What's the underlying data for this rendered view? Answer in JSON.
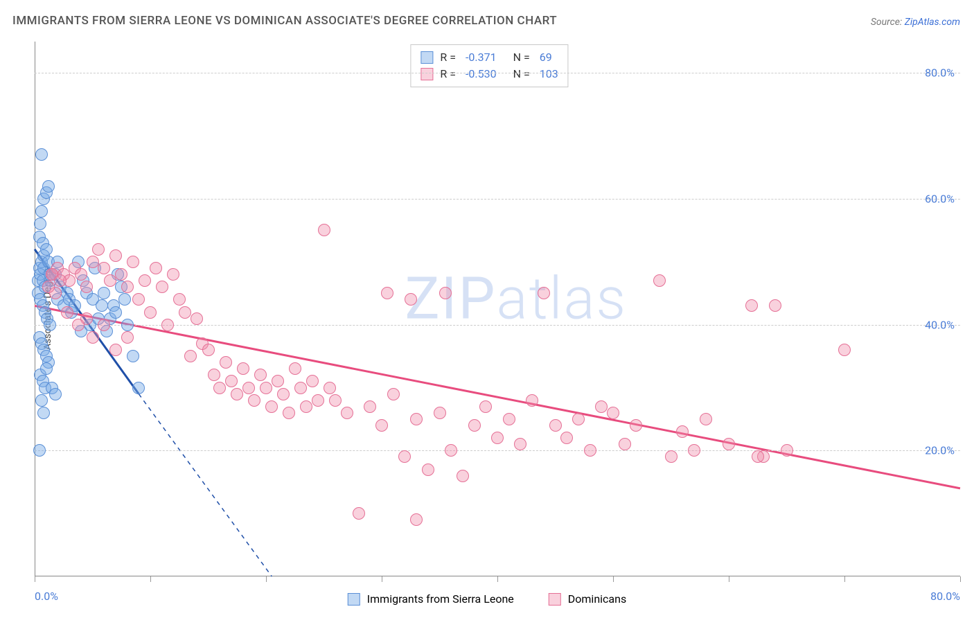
{
  "title": "IMMIGRANTS FROM SIERRA LEONE VS DOMINICAN ASSOCIATE'S DEGREE CORRELATION CHART",
  "source_prefix": "Source: ",
  "source_link": "ZipAtlas.com",
  "y_axis_label": "Associate's Degree",
  "watermark": {
    "bold": "ZIP",
    "light": "atlas"
  },
  "chart": {
    "type": "scatter",
    "xlim": [
      0,
      80
    ],
    "ylim": [
      0,
      85
    ],
    "x_tick_xs": [
      0,
      10,
      20,
      30,
      40,
      50,
      60,
      70,
      80
    ],
    "x_min_label": "0.0%",
    "x_max_label": "80.0%",
    "y_gridlines": [
      {
        "y": 20,
        "label": "20.0%"
      },
      {
        "y": 40,
        "label": "40.0%"
      },
      {
        "y": 60,
        "label": "60.0%"
      },
      {
        "y": 80,
        "label": "80.0%"
      }
    ],
    "background_color": "#ffffff",
    "grid_color": "#cccccc",
    "marker_radius": 9,
    "marker_stroke_width": 1.5,
    "series": [
      {
        "id": "sierra_leone",
        "label": "Immigrants from Sierra Leone",
        "fill": "rgba(120,170,230,0.45)",
        "stroke": "#5a8fd6",
        "trend_color": "#1f4fa8",
        "trend_solid": {
          "x1": 0,
          "y1": 52,
          "x2": 9,
          "y2": 29
        },
        "trend_dash": {
          "x1": 9,
          "y1": 29,
          "x2": 20.5,
          "y2": 0
        },
        "R_label": "R =",
        "R_value": "-0.371",
        "N_label": "N =",
        "N_value": "69",
        "points": [
          [
            0.3,
            47
          ],
          [
            0.4,
            49
          ],
          [
            0.5,
            48
          ],
          [
            0.6,
            50
          ],
          [
            0.7,
            47
          ],
          [
            0.8,
            49
          ],
          [
            0.8,
            51
          ],
          [
            0.5,
            56
          ],
          [
            0.6,
            58
          ],
          [
            0.8,
            60
          ],
          [
            1.0,
            61
          ],
          [
            1.2,
            62
          ],
          [
            0.6,
            67
          ],
          [
            0.4,
            54
          ],
          [
            0.7,
            53
          ],
          [
            1.0,
            52
          ],
          [
            1.2,
            50
          ],
          [
            1.3,
            48
          ],
          [
            1.4,
            47
          ],
          [
            0.3,
            45
          ],
          [
            0.5,
            44
          ],
          [
            0.7,
            43
          ],
          [
            0.9,
            42
          ],
          [
            1.1,
            41
          ],
          [
            1.3,
            40
          ],
          [
            0.4,
            38
          ],
          [
            0.6,
            37
          ],
          [
            0.8,
            36
          ],
          [
            1.0,
            35
          ],
          [
            1.2,
            34
          ],
          [
            0.5,
            32
          ],
          [
            0.7,
            31
          ],
          [
            0.9,
            30
          ],
          [
            1.0,
            33
          ],
          [
            0.6,
            28
          ],
          [
            0.8,
            26
          ],
          [
            1.5,
            30
          ],
          [
            1.8,
            29
          ],
          [
            0.4,
            20
          ],
          [
            2.0,
            44
          ],
          [
            2.2,
            46
          ],
          [
            2.5,
            43
          ],
          [
            2.8,
            45
          ],
          [
            3.0,
            44
          ],
          [
            3.2,
            42
          ],
          [
            3.5,
            43
          ],
          [
            3.8,
            50
          ],
          [
            4.0,
            39
          ],
          [
            4.2,
            47
          ],
          [
            4.5,
            45
          ],
          [
            4.8,
            40
          ],
          [
            5.0,
            44
          ],
          [
            5.2,
            49
          ],
          [
            5.5,
            41
          ],
          [
            5.8,
            43
          ],
          [
            6.0,
            45
          ],
          [
            6.2,
            39
          ],
          [
            6.5,
            41
          ],
          [
            6.8,
            43
          ],
          [
            7.0,
            42
          ],
          [
            7.2,
            48
          ],
          [
            7.5,
            46
          ],
          [
            7.8,
            44
          ],
          [
            8.0,
            40
          ],
          [
            8.5,
            35
          ],
          [
            9.0,
            30
          ],
          [
            1.8,
            48
          ],
          [
            2.0,
            50
          ],
          [
            0.9,
            46
          ]
        ]
      },
      {
        "id": "dominicans",
        "label": "Dominicans",
        "fill": "rgba(240,140,170,0.40)",
        "stroke": "#e56f95",
        "trend_color": "#e84c7e",
        "trend_solid": {
          "x1": 0,
          "y1": 43,
          "x2": 80,
          "y2": 14
        },
        "trend_dash": null,
        "R_label": "R =",
        "R_value": "-0.530",
        "N_label": "N =",
        "N_value": "103",
        "points": [
          [
            1.5,
            48
          ],
          [
            2.0,
            49
          ],
          [
            2.5,
            48
          ],
          [
            3.0,
            47
          ],
          [
            3.5,
            49
          ],
          [
            4.0,
            48
          ],
          [
            4.5,
            46
          ],
          [
            5.0,
            50
          ],
          [
            5.5,
            52
          ],
          [
            6.0,
            49
          ],
          [
            6.5,
            47
          ],
          [
            7.0,
            51
          ],
          [
            7.5,
            48
          ],
          [
            8.0,
            46
          ],
          [
            8.5,
            50
          ],
          [
            9.0,
            44
          ],
          [
            9.5,
            47
          ],
          [
            10.0,
            42
          ],
          [
            10.5,
            49
          ],
          [
            11.0,
            46
          ],
          [
            11.5,
            40
          ],
          [
            12.0,
            48
          ],
          [
            12.5,
            44
          ],
          [
            13.0,
            42
          ],
          [
            13.5,
            35
          ],
          [
            14.0,
            41
          ],
          [
            14.5,
            37
          ],
          [
            15.0,
            36
          ],
          [
            15.5,
            32
          ],
          [
            16.0,
            30
          ],
          [
            16.5,
            34
          ],
          [
            17.0,
            31
          ],
          [
            17.5,
            29
          ],
          [
            18.0,
            33
          ],
          [
            18.5,
            30
          ],
          [
            19.0,
            28
          ],
          [
            19.5,
            32
          ],
          [
            20.0,
            30
          ],
          [
            20.5,
            27
          ],
          [
            21.0,
            31
          ],
          [
            21.5,
            29
          ],
          [
            22.0,
            26
          ],
          [
            22.5,
            33
          ],
          [
            23.0,
            30
          ],
          [
            23.5,
            27
          ],
          [
            24.0,
            31
          ],
          [
            24.5,
            28
          ],
          [
            25.0,
            55
          ],
          [
            25.5,
            30
          ],
          [
            26.0,
            28
          ],
          [
            27.0,
            26
          ],
          [
            28.0,
            10
          ],
          [
            29.0,
            27
          ],
          [
            30.0,
            24
          ],
          [
            30.5,
            45
          ],
          [
            31.0,
            29
          ],
          [
            32.0,
            19
          ],
          [
            32.5,
            44
          ],
          [
            33.0,
            25
          ],
          [
            34.0,
            17
          ],
          [
            35.0,
            26
          ],
          [
            35.5,
            45
          ],
          [
            36.0,
            20
          ],
          [
            37.0,
            16
          ],
          [
            38.0,
            24
          ],
          [
            39.0,
            27
          ],
          [
            40.0,
            22
          ],
          [
            41.0,
            25
          ],
          [
            42.0,
            21
          ],
          [
            43.0,
            28
          ],
          [
            44.0,
            45
          ],
          [
            45.0,
            24
          ],
          [
            46.0,
            22
          ],
          [
            47.0,
            25
          ],
          [
            48.0,
            20
          ],
          [
            49.0,
            27
          ],
          [
            50.0,
            26
          ],
          [
            51.0,
            21
          ],
          [
            52.0,
            24
          ],
          [
            54.0,
            47
          ],
          [
            55.0,
            19
          ],
          [
            56.0,
            23
          ],
          [
            57.0,
            20
          ],
          [
            58.0,
            25
          ],
          [
            60.0,
            21
          ],
          [
            62.0,
            43
          ],
          [
            63.0,
            19
          ],
          [
            64.0,
            43
          ],
          [
            65.0,
            20
          ],
          [
            62.5,
            19
          ],
          [
            70.0,
            36
          ],
          [
            5.0,
            38
          ],
          [
            6.0,
            40
          ],
          [
            7.0,
            36
          ],
          [
            8.0,
            38
          ],
          [
            4.5,
            41
          ],
          [
            3.8,
            40
          ],
          [
            2.8,
            42
          ],
          [
            1.8,
            45
          ],
          [
            1.2,
            46
          ],
          [
            1.5,
            48
          ],
          [
            2.2,
            47
          ],
          [
            33.0,
            9
          ]
        ]
      }
    ]
  },
  "bottom_legend": [
    {
      "label": "Immigrants from Sierra Leone",
      "fill": "rgba(120,170,230,0.45)",
      "stroke": "#5a8fd6"
    },
    {
      "label": "Dominicans",
      "fill": "rgba(240,140,170,0.40)",
      "stroke": "#e56f95"
    }
  ]
}
